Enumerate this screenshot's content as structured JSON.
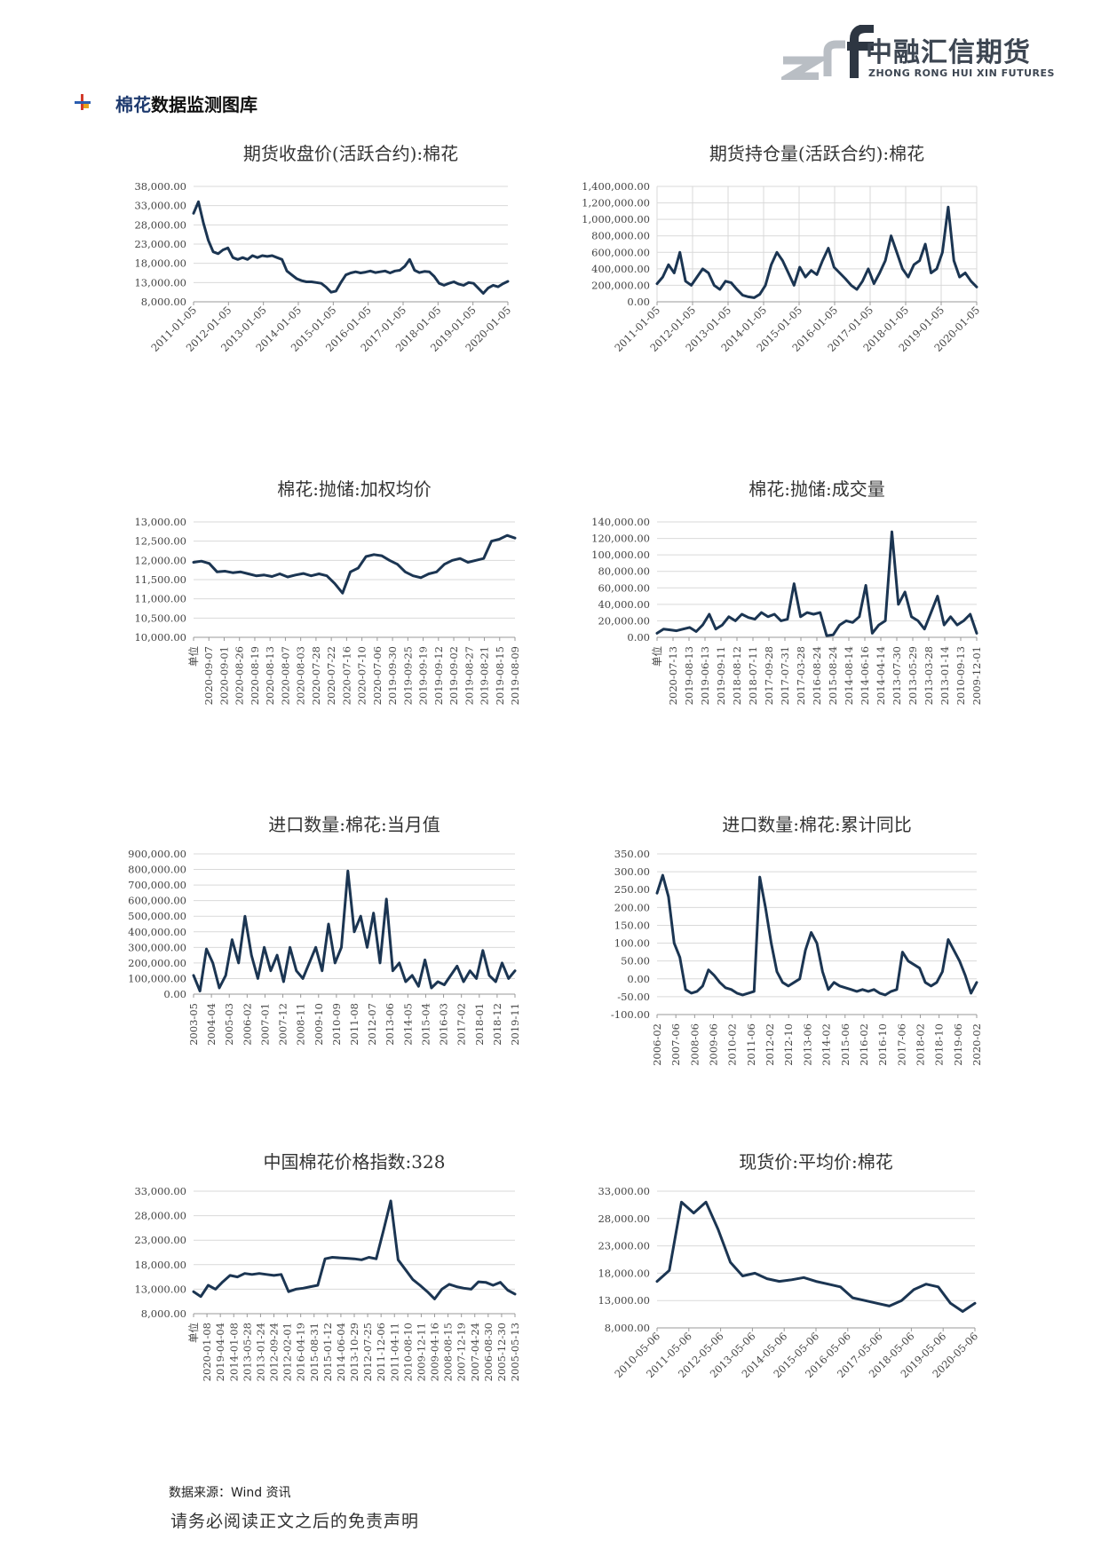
{
  "header": {
    "logo_mark": "znf",
    "logo_cn": "中融汇信期货",
    "logo_en": "ZHONG RONG HUI XIN FUTURES",
    "brand_color": "#3d4652",
    "accent_color": "#1a6bd1"
  },
  "section": {
    "title_highlight": "棉花",
    "title_rest": "数据监测图库",
    "icon": "cross-marker-icon"
  },
  "footer": {
    "source": "数据来源：Wind 资讯",
    "disclaimer": "请务必阅读正文之后的免责声明"
  },
  "line_color": "#1b3552",
  "chart_data": [
    {
      "id": "c1",
      "type": "line",
      "title": "期货收盘价(活跃合约):棉花",
      "ylim": [
        8000,
        38000
      ],
      "yticks": [
        "8,000.00",
        "13,000.00",
        "18,000.00",
        "23,000.00",
        "28,000.00",
        "33,000.00",
        "38,000.00"
      ],
      "xticks": [
        "2011-01-05",
        "2012-01-05",
        "2013-01-05",
        "2014-01-05",
        "2015-01-05",
        "2016-01-05",
        "2017-01-05",
        "2018-01-05",
        "2019-01-05",
        "2020-01-05"
      ],
      "grid": "horizontal",
      "series": [
        {
          "values": [
            31000,
            34000,
            28500,
            24000,
            21000,
            20500,
            21500,
            22000,
            19500,
            19000,
            19500,
            19000,
            20000,
            19500,
            20000,
            19800,
            20000,
            19500,
            19000,
            16000,
            15000,
            14000,
            13500,
            13200,
            13200,
            13000,
            12800,
            11800,
            10500,
            10800,
            13000,
            15000,
            15500,
            15800,
            15500,
            15700,
            16000,
            15600,
            15800,
            16000,
            15500,
            16000,
            16200,
            17200,
            19000,
            16200,
            15600,
            15900,
            15800,
            14600,
            12800,
            12300,
            12800,
            13200,
            12600,
            12300,
            13000,
            12800,
            11500,
            10200,
            11600,
            12300,
            11900,
            12700,
            13300
          ]
        }
      ]
    },
    {
      "id": "c2",
      "type": "line",
      "title": "期货持仓量(活跃合约):棉花",
      "ylim": [
        0,
        1400000
      ],
      "yticks": [
        "0.00",
        "200,000.00",
        "400,000.00",
        "600,000.00",
        "800,000.00",
        "1,000,000.00",
        "1,200,000.00",
        "1,400,000.00"
      ],
      "xticks": [
        "2011-01-05",
        "2012-01-05",
        "2013-01-05",
        "2014-01-05",
        "2015-01-05",
        "2016-01-05",
        "2017-01-05",
        "2018-01-05",
        "2019-01-05",
        "2020-01-05"
      ],
      "grid": "both",
      "series": [
        {
          "values": [
            220000,
            300000,
            450000,
            350000,
            600000,
            250000,
            200000,
            300000,
            400000,
            350000,
            200000,
            150000,
            250000,
            230000,
            150000,
            80000,
            60000,
            50000,
            90000,
            200000,
            450000,
            600000,
            500000,
            350000,
            200000,
            420000,
            300000,
            380000,
            330000,
            500000,
            650000,
            420000,
            350000,
            280000,
            200000,
            150000,
            250000,
            400000,
            220000,
            350000,
            500000,
            800000,
            600000,
            400000,
            300000,
            450000,
            500000,
            700000,
            350000,
            400000,
            600000,
            1150000,
            500000,
            300000,
            350000,
            250000,
            180000
          ]
        }
      ]
    },
    {
      "id": "c3",
      "type": "line",
      "title": "棉花:抛储:加权均价",
      "ylim": [
        10000,
        13000
      ],
      "yticks": [
        "10,000.00",
        "10,500.00",
        "11,000.00",
        "11,500.00",
        "12,000.00",
        "12,500.00",
        "13,000.00"
      ],
      "xticks": [
        "单位",
        "2020-09-07",
        "2020-09-01",
        "2020-08-26",
        "2020-08-19",
        "2020-08-13",
        "2020-08-07",
        "2020-08-03",
        "2020-07-28",
        "2020-07-22",
        "2020-07-16",
        "2020-07-10",
        "2020-07-06",
        "2019-09-30",
        "2019-09-25",
        "2019-09-19",
        "2019-09-12",
        "2019-09-02",
        "2019-08-27",
        "2019-08-21",
        "2019-08-15",
        "2019-08-09"
      ],
      "grid": "horizontal",
      "series": [
        {
          "values": [
            11950,
            11980,
            11920,
            11700,
            11720,
            11680,
            11700,
            11650,
            11600,
            11620,
            11580,
            11650,
            11570,
            11620,
            11660,
            11600,
            11650,
            11600,
            11400,
            11150,
            11700,
            11800,
            12100,
            12150,
            12120,
            12000,
            11900,
            11700,
            11600,
            11550,
            11650,
            11700,
            11900,
            12000,
            12050,
            11950,
            12000,
            12050,
            12500,
            12550,
            12650,
            12580
          ]
        }
      ]
    },
    {
      "id": "c4",
      "type": "line",
      "title": "棉花:抛储:成交量",
      "ylim": [
        0,
        140000
      ],
      "yticks": [
        "0.00",
        "20,000.00",
        "40,000.00",
        "60,000.00",
        "80,000.00",
        "100,000.00",
        "120,000.00",
        "140,000.00"
      ],
      "xticks": [
        "单位",
        "2020-07-13",
        "2019-08-13",
        "2019-06-13",
        "2019-09-11",
        "2018-08-12",
        "2018-07-11",
        "2017-09-28",
        "2017-07-31",
        "2017-03-28",
        "2016-08-24",
        "2015-08-24",
        "2014-08-14",
        "2014-06-16",
        "2014-04-14",
        "2013-07-30",
        "2013-05-29",
        "2013-03-28",
        "2013-01-14",
        "2010-09-13",
        "2009-12-01"
      ],
      "grid": "horizontal",
      "series": [
        {
          "values": [
            5000,
            10000,
            9000,
            8000,
            10000,
            12000,
            7000,
            15000,
            28000,
            10000,
            15000,
            25000,
            20000,
            28000,
            24000,
            22000,
            30000,
            25000,
            28000,
            20000,
            22000,
            65000,
            25000,
            30000,
            28000,
            30000,
            2000,
            3000,
            15000,
            20000,
            18000,
            25000,
            63000,
            5000,
            15000,
            20000,
            128000,
            40000,
            55000,
            25000,
            20000,
            10000,
            30000,
            50000,
            15000,
            25000,
            15000,
            20000,
            28000,
            5000
          ]
        }
      ]
    },
    {
      "id": "c5",
      "type": "line",
      "title": "进口数量:棉花:当月值",
      "ylim": [
        0,
        900000
      ],
      "yticks": [
        "0.00",
        "100,000.00",
        "200,000.00",
        "300,000.00",
        "400,000.00",
        "500,000.00",
        "600,000.00",
        "700,000.00",
        "800,000.00",
        "900,000.00"
      ],
      "xticks": [
        "2003-05",
        "2004-04",
        "2005-03",
        "2006-02",
        "2007-01",
        "2007-12",
        "2008-11",
        "2009-10",
        "2010-09",
        "2011-08",
        "2012-07",
        "2013-06",
        "2014-05",
        "2015-04",
        "2016-03",
        "2017-02",
        "2018-01",
        "2018-12",
        "2019-11"
      ],
      "grid": "horizontal",
      "series": [
        {
          "values": [
            120000,
            20000,
            290000,
            200000,
            40000,
            120000,
            350000,
            200000,
            500000,
            250000,
            100000,
            300000,
            150000,
            250000,
            80000,
            300000,
            150000,
            100000,
            200000,
            300000,
            150000,
            450000,
            200000,
            300000,
            790000,
            400000,
            500000,
            300000,
            520000,
            200000,
            610000,
            150000,
            200000,
            80000,
            120000,
            50000,
            220000,
            40000,
            80000,
            60000,
            120000,
            180000,
            80000,
            150000,
            100000,
            280000,
            120000,
            80000,
            200000,
            100000,
            150000
          ]
        }
      ]
    },
    {
      "id": "c6",
      "type": "line",
      "title": "进口数量:棉花:累计同比",
      "ylim": [
        -100,
        350
      ],
      "yticks": [
        "-100.00",
        "-50.00",
        "0.00",
        "50.00",
        "100.00",
        "150.00",
        "200.00",
        "250.00",
        "300.00",
        "350.00"
      ],
      "xticks": [
        "2006-02",
        "2007-06",
        "2008-06",
        "2009-06",
        "2010-02",
        "2011-06",
        "2012-02",
        "2012-10",
        "2013-06",
        "2014-02",
        "2015-06",
        "2016-02",
        "2016-10",
        "2017-06",
        "2018-02",
        "2018-10",
        "2019-06",
        "2020-02"
      ],
      "grid": "horizontal",
      "series": [
        {
          "values": [
            240,
            290,
            230,
            100,
            60,
            -30,
            -40,
            -35,
            -20,
            25,
            10,
            -10,
            -25,
            -30,
            -40,
            -45,
            -40,
            -35,
            285,
            200,
            100,
            20,
            -10,
            -20,
            -10,
            0,
            80,
            130,
            100,
            20,
            -30,
            -10,
            -20,
            -25,
            -30,
            -35,
            -30,
            -35,
            -30,
            -40,
            -45,
            -35,
            -30,
            75,
            50,
            40,
            30,
            -10,
            -20,
            -10,
            20,
            110,
            80,
            50,
            10,
            -40,
            -10
          ]
        }
      ]
    },
    {
      "id": "c7",
      "type": "line",
      "title": "中国棉花价格指数:328",
      "ylim": [
        8000,
        33000
      ],
      "yticks": [
        "8,000.00",
        "13,000.00",
        "18,000.00",
        "23,000.00",
        "28,000.00",
        "33,000.00"
      ],
      "xticks": [
        "单位",
        "2020-01-08",
        "2019-04-04",
        "2014-01-08",
        "2013-05-28",
        "2013-01-24",
        "2012-09-24",
        "2012-02-01",
        "2016-04-19",
        "2015-08-31",
        "2015-01-12",
        "2014-06-04",
        "2013-10-29",
        "2012-07-25",
        "2011-12-06",
        "2011-04-11",
        "2010-08-10",
        "2009-12-11",
        "2009-04-16",
        "2008-08-15",
        "2007-12-19",
        "2007-04-24",
        "2006-08-30",
        "2005-12-30",
        "2005-05-13"
      ],
      "grid": "horizontal",
      "series": [
        {
          "values": [
            12500,
            11500,
            13800,
            13000,
            14500,
            15800,
            15500,
            16200,
            16000,
            16200,
            16000,
            15800,
            16000,
            12500,
            13000,
            13200,
            13500,
            13800,
            19200,
            19500,
            19400,
            19300,
            19200,
            19000,
            19500,
            19200,
            25000,
            31000,
            19000,
            17000,
            15000,
            13800,
            12500,
            11000,
            13000,
            14000,
            13500,
            13200,
            13000,
            14500,
            14400,
            13800,
            14400,
            12800,
            12000
          ]
        }
      ]
    },
    {
      "id": "c8",
      "type": "line",
      "title": "现货价:平均价:棉花",
      "ylim": [
        8000,
        33000
      ],
      "yticks": [
        "8,000.00",
        "13,000.00",
        "18,000.00",
        "23,000.00",
        "28,000.00",
        "33,000.00"
      ],
      "xticks": [
        "2010-05-06",
        "2011-05-06",
        "2012-05-06",
        "2013-05-06",
        "2014-05-06",
        "2015-05-06",
        "2016-05-06",
        "2017-05-06",
        "2018-05-06",
        "2019-05-06",
        "2020-05-06"
      ],
      "grid": "horizontal",
      "series": [
        {
          "values": [
            16500,
            18500,
            31000,
            29000,
            31000,
            26000,
            20000,
            17500,
            18000,
            17000,
            16500,
            16800,
            17200,
            16500,
            16000,
            15500,
            13500,
            13000,
            12500,
            12000,
            13000,
            15000,
            16000,
            15500,
            12500,
            11000,
            12500
          ]
        }
      ]
    }
  ]
}
